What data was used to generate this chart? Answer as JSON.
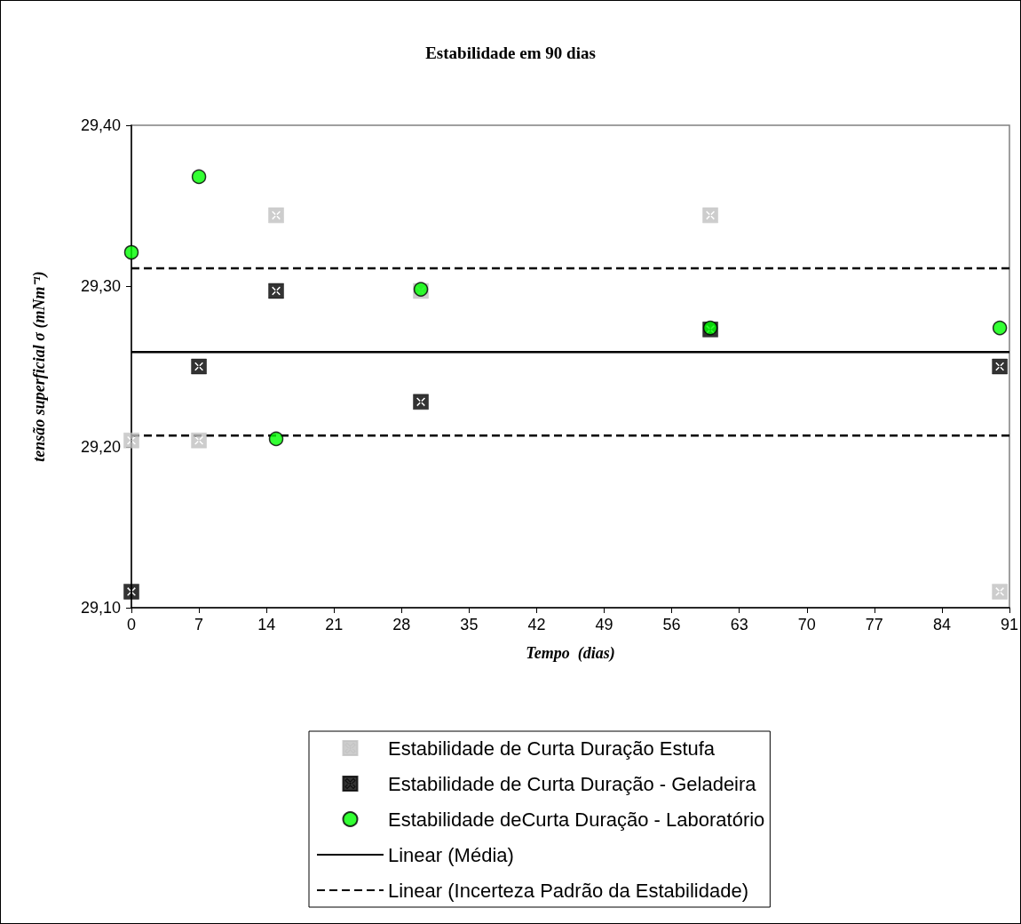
{
  "chart_data": {
    "type": "scatter",
    "title": "Estabilidade em 90 dias",
    "xlabel": "Tempo  (dias)",
    "ylabel": "tensão superficial σ (mNm⁻¹)",
    "xlim": [
      0,
      91
    ],
    "xticks": [
      0,
      7,
      14,
      21,
      28,
      35,
      42,
      49,
      56,
      63,
      70,
      77,
      84,
      91
    ],
    "ylim": [
      29.1,
      29.4
    ],
    "yticks": [
      {
        "value": 29.1,
        "label": "29,10"
      },
      {
        "value": 29.2,
        "label": "29,20"
      },
      {
        "value": 29.3,
        "label": "29,30"
      },
      {
        "value": 29.4,
        "label": "29,40"
      }
    ],
    "grid": false,
    "legend": "bottom",
    "series": [
      {
        "name": "Estabilidade de Curta Duração Estufa",
        "color": "#c0c0c0",
        "marker": "cross",
        "x": [
          0,
          7,
          15,
          30,
          60,
          90
        ],
        "values": [
          29.204,
          29.204,
          29.344,
          29.297,
          29.344,
          29.11
        ]
      },
      {
        "name": "Estabilidade de Curta Duração - Geladeira",
        "color": "#000000",
        "marker": "cross",
        "x": [
          0,
          7,
          15,
          30,
          60,
          90
        ],
        "values": [
          29.11,
          29.25,
          29.297,
          29.228,
          29.273,
          29.25
        ]
      },
      {
        "name": "Estabilidade deCurta Duração - Laboratório",
        "color": "#00ff00",
        "marker": "circle",
        "x": [
          0,
          7,
          15,
          30,
          60,
          90
        ],
        "values": [
          29.321,
          29.368,
          29.205,
          29.298,
          29.274,
          29.274
        ]
      },
      {
        "name": "Linear (Média)",
        "type": "line",
        "color": "#000000",
        "marker": "none",
        "line_style": "solid",
        "x": [
          0,
          91
        ],
        "values": [
          29.259,
          29.259
        ]
      },
      {
        "name": "Linear (Incerteza Padrão da Estabilidade)",
        "type": "line",
        "color": "#000000",
        "marker": "none",
        "line_style": "dashed",
        "x": [
          0,
          91
        ],
        "values": [
          29.311,
          29.311
        ]
      },
      {
        "type": "line",
        "color": "#000000",
        "marker": "none",
        "line_style": "dashed",
        "x": [
          0,
          91
        ],
        "values": [
          29.207,
          29.207
        ]
      }
    ]
  }
}
